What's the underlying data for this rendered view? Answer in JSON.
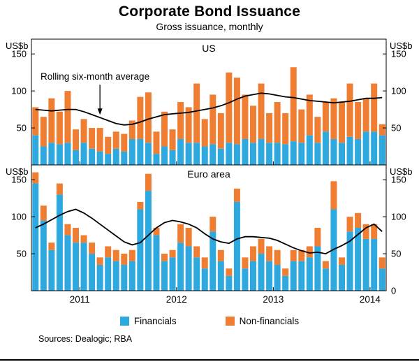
{
  "title": "Corporate Bond Issuance",
  "subtitle": "Gross issuance, monthly",
  "sources": "Sources:  Dealogic; RBA",
  "colors": {
    "financials": "#2ea9df",
    "nonfinancials": "#f07e32",
    "line": "#000000"
  },
  "legend": [
    {
      "label": "Financials",
      "color": "#2ea9df"
    },
    {
      "label": "Non-financials",
      "color": "#f07e32"
    }
  ],
  "months": [
    "Jul 2010",
    "Aug 2010",
    "Sep 2010",
    "Oct 2010",
    "Nov 2010",
    "Dec 2010",
    "Jan 2011",
    "Feb 2011",
    "Mar 2011",
    "Apr 2011",
    "May 2011",
    "Jun 2011",
    "Jul 2011",
    "Aug 2011",
    "Sep 2011",
    "Oct 2011",
    "Nov 2011",
    "Dec 2011",
    "Jan 2012",
    "Feb 2012",
    "Mar 2012",
    "Apr 2012",
    "May 2012",
    "Jun 2012",
    "Jul 2012",
    "Aug 2012",
    "Sep 2012",
    "Oct 2012",
    "Nov 2012",
    "Dec 2012",
    "Jan 2013",
    "Feb 2013",
    "Mar 2013",
    "Apr 2013",
    "May 2013",
    "Jun 2013",
    "Jul 2013",
    "Aug 2013",
    "Sep 2013",
    "Oct 2013",
    "Nov 2013",
    "Dec 2013",
    "Jan 2014",
    "Feb 2014"
  ],
  "years_axis": {
    "labels": [
      "2011",
      "2012",
      "2013",
      "2014"
    ],
    "jan_indices": [
      6,
      18,
      30,
      42
    ]
  },
  "chart_data": [
    {
      "type": "bar",
      "stacked": true,
      "panel_title": "US",
      "unit": "US$b",
      "ylim": [
        0,
        170
      ],
      "yticks_left": [
        50,
        100,
        150
      ],
      "yticks_right": [
        50,
        100,
        150
      ],
      "series": [
        {
          "name": "Financials",
          "values": [
            40,
            25,
            30,
            28,
            30,
            20,
            30,
            22,
            18,
            15,
            22,
            18,
            35,
            35,
            30,
            15,
            25,
            20,
            35,
            30,
            30,
            25,
            28,
            22,
            30,
            28,
            35,
            30,
            35,
            30,
            30,
            28,
            32,
            30,
            40,
            30,
            45,
            35,
            30,
            38,
            35,
            45,
            45,
            40
          ]
        },
        {
          "name": "Non-financials",
          "values": [
            38,
            40,
            60,
            44,
            70,
            28,
            32,
            28,
            32,
            23,
            23,
            24,
            25,
            57,
            68,
            30,
            47,
            28,
            50,
            48,
            80,
            37,
            67,
            48,
            95,
            90,
            60,
            50,
            75,
            40,
            55,
            42,
            100,
            45,
            55,
            35,
            40,
            55,
            55,
            72,
            50,
            45,
            65,
            15
          ]
        }
      ],
      "line": {
        "name": "Rolling six-month average",
        "values": [
          75,
          74,
          73,
          74,
          75,
          75,
          72,
          68,
          64,
          60,
          56,
          54,
          55,
          58,
          62,
          65,
          68,
          69,
          70,
          71,
          73,
          75,
          77,
          80,
          84,
          89,
          93,
          95,
          97,
          96,
          94,
          92,
          91,
          89,
          87,
          86,
          85,
          84,
          85,
          86,
          88,
          90,
          90,
          91
        ]
      },
      "annotation": {
        "text": "Rolling six-month average",
        "points_to_month": "Mar 2011"
      }
    },
    {
      "type": "bar",
      "stacked": true,
      "panel_title": "Euro area",
      "unit": "US$b",
      "ylim": [
        0,
        170
      ],
      "yticks_left": [
        50,
        100,
        150
      ],
      "yticks_right": [
        0,
        50,
        100,
        150
      ],
      "series": [
        {
          "name": "Financials",
          "values": [
            145,
            95,
            55,
            130,
            75,
            65,
            65,
            50,
            35,
            45,
            40,
            35,
            40,
            110,
            135,
            75,
            40,
            45,
            65,
            60,
            45,
            30,
            80,
            40,
            20,
            120,
            30,
            40,
            50,
            40,
            35,
            20,
            40,
            40,
            45,
            60,
            30,
            110,
            35,
            80,
            85,
            70,
            70,
            30
          ]
        },
        {
          "name": "Non-financials",
          "values": [
            15,
            20,
            10,
            15,
            15,
            20,
            10,
            15,
            10,
            15,
            15,
            15,
            15,
            10,
            23,
            10,
            10,
            10,
            25,
            25,
            15,
            15,
            20,
            15,
            10,
            18,
            15,
            20,
            20,
            20,
            20,
            10,
            15,
            15,
            15,
            25,
            10,
            38,
            10,
            20,
            20,
            20,
            20,
            15
          ]
        }
      ],
      "line": {
        "name": "Rolling six-month average",
        "values": [
          85,
          90,
          96,
          102,
          107,
          110,
          105,
          98,
          90,
          82,
          74,
          66,
          62,
          65,
          75,
          85,
          92,
          95,
          93,
          90,
          85,
          77,
          70,
          66,
          64,
          70,
          73,
          73,
          72,
          71,
          68,
          63,
          58,
          54,
          51,
          52,
          50,
          56,
          61,
          67,
          76,
          85,
          90,
          80
        ]
      }
    }
  ]
}
